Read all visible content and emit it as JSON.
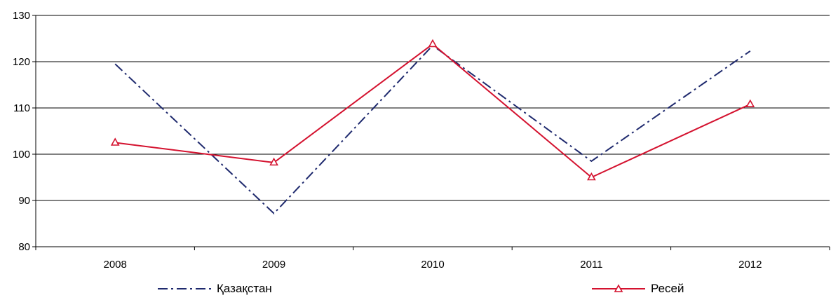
{
  "chart_data": {
    "type": "line",
    "title": "",
    "xlabel": "",
    "ylabel": "",
    "categories": [
      "2008",
      "2009",
      "2010",
      "2011",
      "2012"
    ],
    "ylim": [
      80,
      130
    ],
    "yticks": [
      "80",
      "90",
      "100",
      "110",
      "120",
      "130"
    ],
    "grid": true,
    "legend_position": "bottom",
    "series": [
      {
        "name": "Қазақстан",
        "values": [
          119.5,
          87.2,
          123.5,
          98.5,
          122.3
        ],
        "color": "#1f2a6e",
        "style": "dash-dot",
        "marker": "none"
      },
      {
        "name": "Ресей",
        "values": [
          102.5,
          98.2,
          123.8,
          95.0,
          110.8
        ],
        "color": "#d4122f",
        "style": "solid",
        "marker": "triangle"
      }
    ]
  }
}
